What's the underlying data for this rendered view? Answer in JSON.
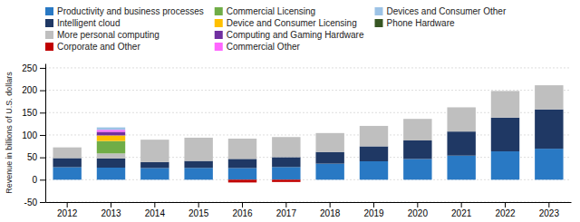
{
  "chart_data": {
    "type": "bar",
    "stacked": true,
    "ylabel": "Revenue in billions of U.S. dollars",
    "categories": [
      "2012",
      "2013",
      "2014",
      "2015",
      "2016",
      "2017",
      "2018",
      "2019",
      "2020",
      "2021",
      "2022",
      "2023"
    ],
    "series": [
      {
        "name": "Productivity and business processes",
        "color": "#2979C4",
        "values": [
          28.0,
          27.0,
          26.1,
          26.4,
          26.1,
          28.3,
          35.9,
          41.2,
          46.4,
          53.9,
          63.4,
          69.3
        ]
      },
      {
        "name": "Intelligent cloud",
        "color": "#1F3864",
        "values": [
          20.3,
          20.3,
          13.4,
          15.6,
          20.4,
          22.1,
          26.1,
          33.4,
          41.4,
          53.8,
          75.3,
          87.9
        ]
      },
      {
        "name": "More personal computing",
        "color": "#BFBFBF",
        "values": [
          24.0,
          11.5,
          50.0,
          52.0,
          45.4,
          45.0,
          42.3,
          45.7,
          48.2,
          54.1,
          59.7,
          54.0
        ]
      },
      {
        "name": "Corporate and Other",
        "color": "#C00000",
        "values": [
          0,
          0,
          0,
          0,
          -6.2,
          -5.1,
          0,
          0,
          0,
          0,
          0,
          0
        ]
      },
      {
        "name": "Commercial Licensing",
        "color": "#70AD47",
        "values": [
          0,
          27.7,
          0,
          0,
          0,
          0,
          0,
          0,
          0,
          0,
          0,
          0
        ]
      },
      {
        "name": "Device and Consumer Licensing",
        "color": "#FFC000",
        "values": [
          0,
          12.5,
          0,
          0,
          0,
          0,
          0,
          0,
          0,
          0,
          0,
          0
        ]
      },
      {
        "name": "Computing and Gaming Hardware",
        "color": "#7030A0",
        "values": [
          0,
          8.0,
          0,
          0,
          0,
          0,
          0,
          0,
          0,
          0,
          0,
          0
        ]
      },
      {
        "name": "Commercial Other",
        "color": "#FF66FF",
        "values": [
          0,
          4.5,
          0,
          0,
          0,
          0,
          0,
          0,
          0,
          0,
          0,
          0
        ]
      },
      {
        "name": "Devices and Consumer Other",
        "color": "#9DC3E6",
        "values": [
          0,
          5.5,
          0,
          0,
          0,
          0,
          0,
          0,
          0,
          0,
          0,
          0
        ]
      },
      {
        "name": "Phone Hardware",
        "color": "#375623",
        "values": [
          0,
          0,
          0,
          0,
          0,
          0,
          0,
          0,
          0,
          0,
          0,
          0
        ]
      }
    ],
    "ylim": [
      -50,
      260
    ],
    "yticks": [
      -50,
      0,
      50,
      100,
      150,
      200,
      250
    ],
    "grid": true,
    "legend": "top"
  }
}
